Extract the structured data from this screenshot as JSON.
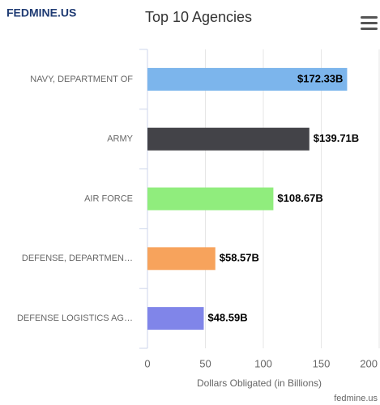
{
  "brand": "FEDMINE.US",
  "footer": "fedmine.us",
  "chart_data": {
    "type": "bar",
    "orientation": "horizontal",
    "title": "Top 10 Agencies",
    "x_label": "Dollars Obligated (in Billions)",
    "categories": [
      "NAVY, DEPARTMENT OF",
      "ARMY",
      "AIR FORCE",
      "DEFENSE, DEPARTMEN…",
      "DEFENSE LOGISTICS AG…"
    ],
    "values": [
      172.33,
      139.71,
      108.67,
      58.57,
      48.59
    ],
    "value_labels": [
      "$172.33B",
      "$139.71B",
      "$108.67B",
      "$58.57B",
      "$48.59B"
    ],
    "colors": [
      "#7cb5ec",
      "#434348",
      "#90ed7d",
      "#f7a35c",
      "#8085e9"
    ],
    "xlim": [
      0,
      200
    ],
    "xticks": [
      0,
      50,
      100,
      150,
      200
    ],
    "grid": true
  }
}
